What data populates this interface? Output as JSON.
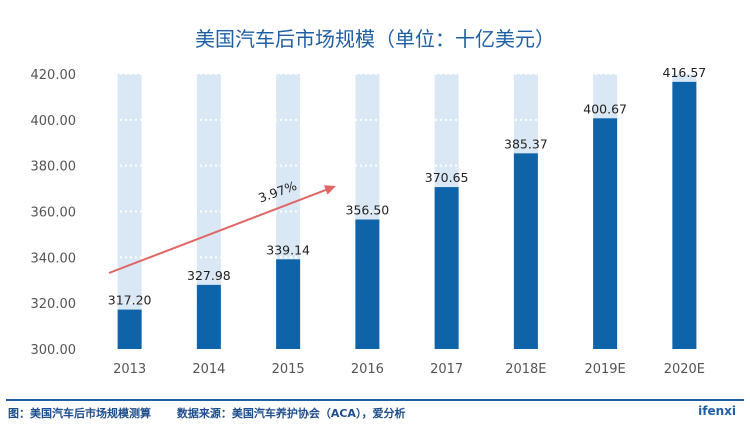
{
  "chart_data": {
    "type": "bar",
    "title": "美国汽车后市场规模（单位：十亿美元）",
    "categories": [
      "2013",
      "2014",
      "2015",
      "2016",
      "2017",
      "2018E",
      "2019E",
      "2020E"
    ],
    "values": [
      317.2,
      327.98,
      339.14,
      356.5,
      370.65,
      385.37,
      400.67,
      416.57
    ],
    "value_labels": [
      "317.20",
      "327.98",
      "339.14",
      "356.50",
      "370.65",
      "385.37",
      "400.67",
      "416.57"
    ],
    "ylim": [
      300,
      420
    ],
    "yticks": [
      "300.00",
      "320.00",
      "340.00",
      "360.00",
      "380.00",
      "400.00",
      "420.00"
    ],
    "xlabel": "",
    "ylabel": "",
    "grid": true,
    "growth_annotation": "3.97%",
    "colors": {
      "bar": "#0f63a8",
      "background_band": "#d9e8f4",
      "title": "#1f5fa5",
      "arrow": "#e06666",
      "text": "#404040",
      "axis": "#555555"
    }
  },
  "footer": {
    "source_left": "图：美国汽车后市场规模测算",
    "source_right": "数据来源：美国汽车养护协会（ACA），爱分析",
    "brand": "ifenxi"
  }
}
